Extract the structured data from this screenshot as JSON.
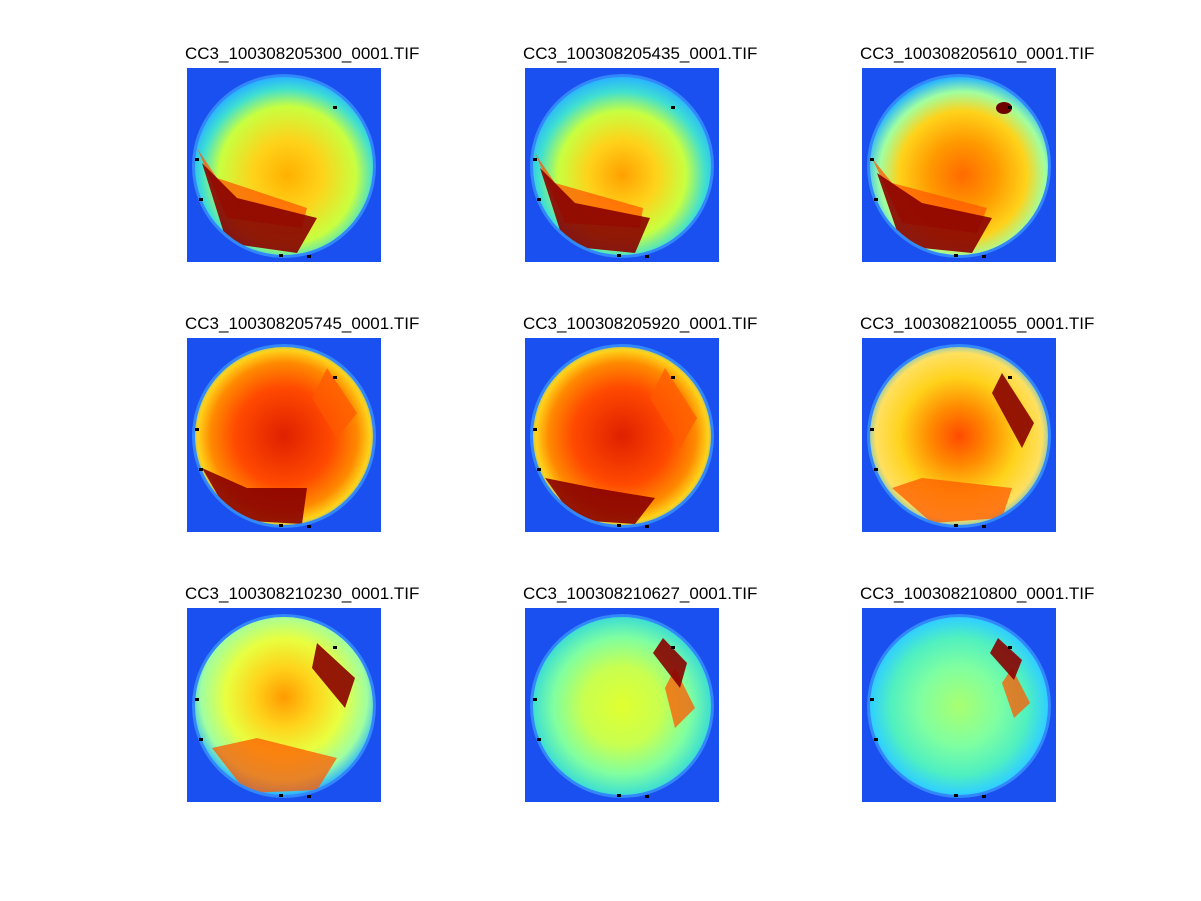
{
  "figure": {
    "colormap": "jet",
    "background": "#ffffff",
    "panels": [
      {
        "title": "CC3_100308205300_0001.TIF",
        "variant": 0
      },
      {
        "title": "CC3_100308205435_0001.TIF",
        "variant": 1
      },
      {
        "title": "CC3_100308205610_0001.TIF",
        "variant": 2
      },
      {
        "title": "CC3_100308205745_0001.TIF",
        "variant": 3
      },
      {
        "title": "CC3_100308205920_0001.TIF",
        "variant": 4
      },
      {
        "title": "CC3_100308210055_0001.TIF",
        "variant": 5
      },
      {
        "title": "CC3_100308210230_0001.TIF",
        "variant": 6
      },
      {
        "title": "CC3_100308210627_0001.TIF",
        "variant": 7
      },
      {
        "title": "CC3_100308210800_0001.TIF",
        "variant": 8
      }
    ]
  }
}
